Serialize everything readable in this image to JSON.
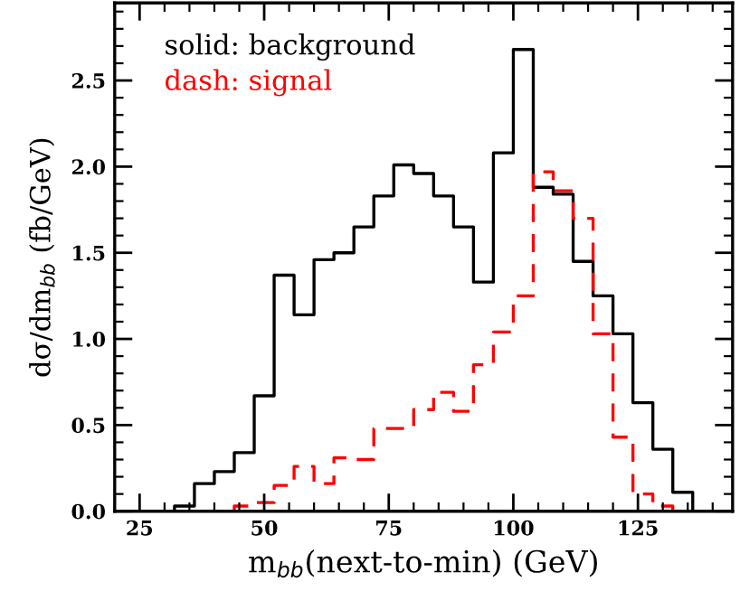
{
  "chart_data": {
    "type": "histogram",
    "xlabel": "m$_{bb}$(next-to-min) (GeV)",
    "ylabel": "dσ/dm$_{bb}$ (fb/GeV)",
    "annotations": [
      "solid: background",
      "dash: signal"
    ],
    "bins": [
      20,
      24,
      28,
      32,
      36,
      40,
      44,
      48,
      52,
      56,
      60,
      64,
      68,
      72,
      76,
      80,
      84,
      88,
      92,
      96,
      100,
      104,
      108,
      112,
      116,
      120,
      124,
      128,
      132,
      136,
      140,
      144
    ],
    "series": [
      {
        "color": "#000000",
        "line_style": "solid",
        "values": [
          0,
          0,
          0,
          0.03,
          0.16,
          0.23,
          0.34,
          0.67,
          1.37,
          1.14,
          1.46,
          1.5,
          1.65,
          1.83,
          2.01,
          1.96,
          1.83,
          1.65,
          1.33,
          2.08,
          2.68,
          1.88,
          1.84,
          1.45,
          1.25,
          1.03,
          0.63,
          0.36,
          0.11,
          0,
          0
        ]
      },
      {
        "color": "#ff0000",
        "line_style": "dashed",
        "values": [
          0,
          0,
          0,
          0,
          0,
          0,
          0.03,
          0.05,
          0.15,
          0.26,
          0.16,
          0.31,
          0.3,
          0.48,
          0.48,
          0.59,
          0.69,
          0.58,
          0.85,
          1.04,
          1.25,
          1.97,
          1.86,
          1.7,
          1.03,
          0.43,
          0.1,
          0.03,
          0,
          0,
          0
        ]
      }
    ],
    "xlim": [
      20,
      144
    ],
    "ylim": [
      0,
      2.95
    ],
    "xticks": [
      {
        "value": 20,
        "label": null
      },
      25,
      {
        "value": 30,
        "label": null
      },
      {
        "value": 35,
        "label": null
      },
      {
        "value": 40,
        "label": null
      },
      {
        "value": 45,
        "label": null
      },
      50,
      {
        "value": 55,
        "label": null
      },
      {
        "value": 60,
        "label": null
      },
      {
        "value": 65,
        "label": null
      },
      {
        "value": 70,
        "label": null
      },
      75,
      {
        "value": 80,
        "label": null
      },
      {
        "value": 85,
        "label": null
      },
      {
        "value": 90,
        "label": null
      },
      {
        "value": 95,
        "label": null
      },
      100,
      {
        "value": 105,
        "label": null
      },
      {
        "value": 110,
        "label": null
      },
      {
        "value": 115,
        "label": null
      },
      {
        "value": 120,
        "label": null
      },
      125,
      {
        "value": 130,
        "label": null
      },
      {
        "value": 135,
        "label": null
      },
      {
        "value": 140,
        "label": null
      }
    ],
    "yticks": [
      {
        "value": 0,
        "label": "0.0"
      },
      {
        "value": 0.1,
        "label": null
      },
      {
        "value": 0.2,
        "label": null
      },
      {
        "value": 0.3,
        "label": null
      },
      {
        "value": 0.4,
        "label": null
      },
      {
        "value": 0.5,
        "label": "0.5"
      },
      {
        "value": 0.6,
        "label": null
      },
      {
        "value": 0.7,
        "label": null
      },
      {
        "value": 0.8,
        "label": null
      },
      {
        "value": 0.9,
        "label": null
      },
      {
        "value": 1.0,
        "label": "1.0"
      },
      {
        "value": 1.1,
        "label": null
      },
      {
        "value": 1.2,
        "label": null
      },
      {
        "value": 1.3,
        "label": null
      },
      {
        "value": 1.4,
        "label": null
      },
      {
        "value": 1.5,
        "label": "1.5"
      },
      {
        "value": 1.6,
        "label": null
      },
      {
        "value": 1.7,
        "label": null
      },
      {
        "value": 1.8,
        "label": null
      },
      {
        "value": 1.9,
        "label": null
      },
      {
        "value": 2.0,
        "label": "2.0"
      },
      {
        "value": 2.1,
        "label": null
      },
      {
        "value": 2.2,
        "label": null
      },
      {
        "value": 2.3,
        "label": null
      },
      {
        "value": 2.4,
        "label": null
      },
      {
        "value": 2.5,
        "label": "2.5"
      },
      {
        "value": 2.6,
        "label": null
      },
      {
        "value": 2.7,
        "label": null
      },
      {
        "value": 2.8,
        "label": null
      },
      {
        "value": 2.9,
        "label": null
      }
    ],
    "grid": false,
    "legend": false
  }
}
